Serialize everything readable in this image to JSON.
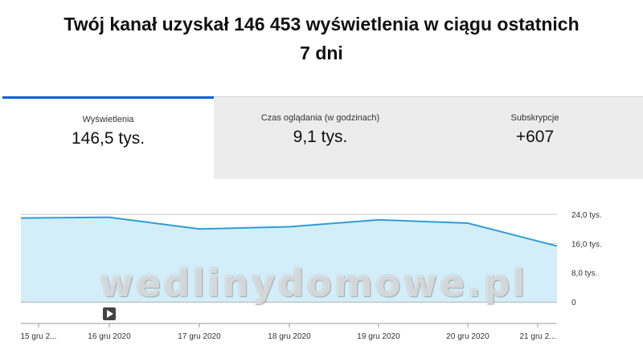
{
  "headline": {
    "line1": "Twój kanał uzyskał 146 453 wyświetlenia w ciągu ostatnich",
    "line2": "7 dni"
  },
  "tabs": [
    {
      "label": "Wyświetlenia",
      "value": "146,5 tys.",
      "active": true
    },
    {
      "label": "Czas oglądania (w godzinach)",
      "value": "9,1 tys.",
      "active": false
    },
    {
      "label": "Subskrypcje",
      "value": "+607",
      "active": false
    }
  ],
  "watermark": "wedlinydomowe.pl",
  "chart_data": {
    "type": "area",
    "x": [
      "15 gru 2...",
      "16 gru 2020",
      "17 gru 2020",
      "18 gru 2020",
      "19 gru 2020",
      "20 gru 2020",
      "21 gru 2..."
    ],
    "series": [
      {
        "values": [
          23.0,
          23.2,
          20.0,
          20.6,
          22.5,
          21.6,
          15.3
        ]
      }
    ],
    "yticks": [
      "24,0 tys.",
      "16,0 tys.",
      "8,0 tys.",
      "0"
    ],
    "ylim": [
      0,
      26
    ],
    "grid": true,
    "colors": {
      "line": "#2d9ed6",
      "fill": "#d3eef8",
      "grid": "#c8c8c8"
    }
  },
  "play_icon": "play-icon"
}
